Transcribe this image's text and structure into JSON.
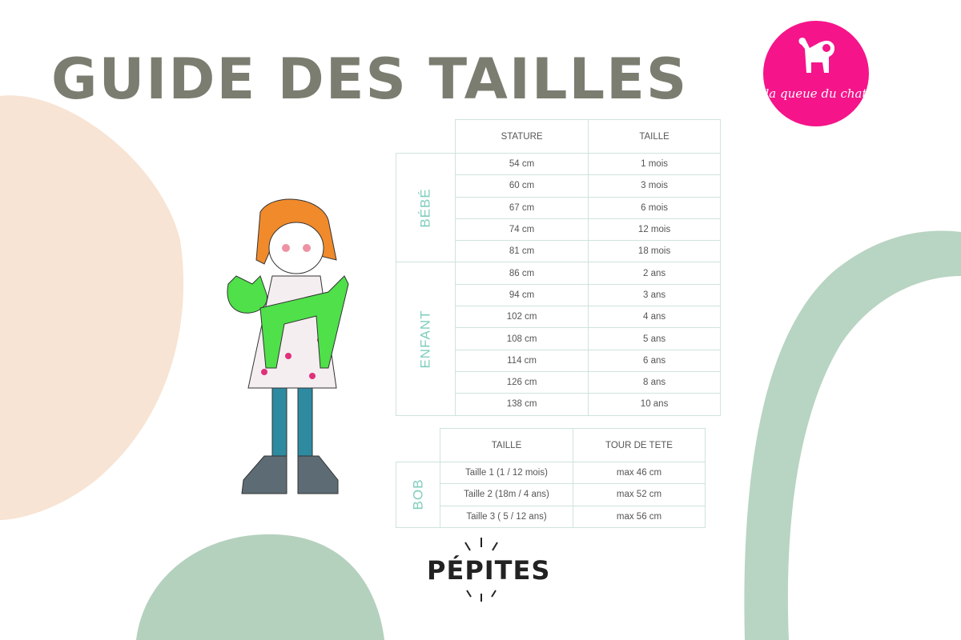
{
  "title": "GUIDE DES TAILLES",
  "logo": {
    "text": "la queue du chat",
    "color": "#f5148a"
  },
  "brand": "PÉPITES",
  "colors": {
    "title": "#7b7d70",
    "border": "#cfe3dd",
    "group_label": "#7fcdbd",
    "peach": "#f8e4d4",
    "sage": "#acccb7"
  },
  "size_table": {
    "headers": [
      "STATURE",
      "TAILLE"
    ],
    "groups": [
      {
        "label": "BÉBÉ",
        "rows": [
          [
            "54 cm",
            "1 mois"
          ],
          [
            "60 cm",
            "3 mois"
          ],
          [
            "67 cm",
            "6 mois"
          ],
          [
            "74 cm",
            "12 mois"
          ],
          [
            "81 cm",
            "18 mois"
          ]
        ]
      },
      {
        "label": "ENFANT",
        "rows": [
          [
            "86 cm",
            "2 ans"
          ],
          [
            "94 cm",
            "3 ans"
          ],
          [
            "102 cm",
            "4 ans"
          ],
          [
            "108 cm",
            "5 ans"
          ],
          [
            "114 cm",
            "6 ans"
          ],
          [
            "126 cm",
            "8 ans"
          ],
          [
            "138 cm",
            "10 ans"
          ]
        ]
      }
    ]
  },
  "hat_table": {
    "headers": [
      "TAILLE",
      "TOUR DE TETE"
    ],
    "group": {
      "label": "BOB",
      "rows": [
        [
          "Taille 1 (1 / 12 mois)",
          "max 46 cm"
        ],
        [
          "Taille 2 (18m / 4 ans)",
          "max 52 cm"
        ],
        [
          "Taille 3 ( 5 / 12 ans)",
          "max 56 cm"
        ]
      ]
    }
  }
}
